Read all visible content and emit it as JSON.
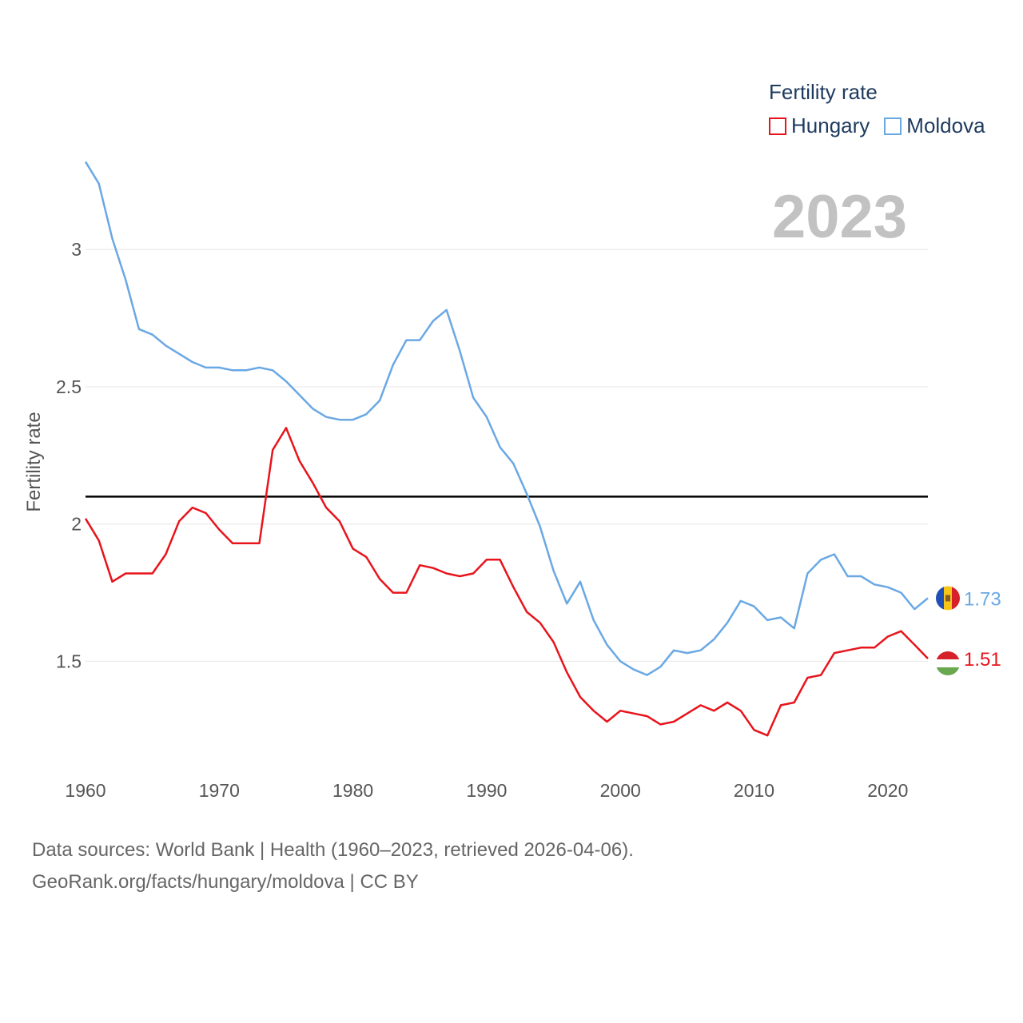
{
  "legend": {
    "title": "Fertility rate",
    "items": [
      {
        "label": "Hungary",
        "color": "#e8141c"
      },
      {
        "label": "Moldova",
        "color": "#6aa8e4"
      }
    ]
  },
  "year_label": "2023",
  "source": {
    "line1": "Data sources: World Bank | Health (1960–2023, retrieved 2026-04-06).",
    "line2": "GeoRank.org/facts/hungary/moldova | CC BY"
  },
  "colors": {
    "hungary": "#e8141c",
    "moldova": "#6aa8e4",
    "reference": "#000000",
    "grid": "#e6e6e6"
  },
  "chart_data": {
    "type": "line",
    "ylabel": "Fertility rate",
    "xlabel": "",
    "xlim": [
      1960,
      2023
    ],
    "ylim": [
      1.05,
      3.35
    ],
    "x_ticks": [
      1960,
      1970,
      1980,
      1990,
      2000,
      2010,
      2020
    ],
    "y_ticks": [
      1.5,
      2,
      2.5,
      3
    ],
    "y_tick_labels": [
      "1.5",
      "2",
      "2.5",
      "3"
    ],
    "reference_line": 2.1,
    "x": [
      1960,
      1961,
      1962,
      1963,
      1964,
      1965,
      1966,
      1967,
      1968,
      1969,
      1970,
      1971,
      1972,
      1973,
      1974,
      1975,
      1976,
      1977,
      1978,
      1979,
      1980,
      1981,
      1982,
      1983,
      1984,
      1985,
      1986,
      1987,
      1988,
      1989,
      1990,
      1991,
      1992,
      1993,
      1994,
      1995,
      1996,
      1997,
      1998,
      1999,
      2000,
      2001,
      2002,
      2003,
      2004,
      2005,
      2006,
      2007,
      2008,
      2009,
      2010,
      2011,
      2012,
      2013,
      2014,
      2015,
      2016,
      2017,
      2018,
      2019,
      2020,
      2021,
      2022,
      2023
    ],
    "series": [
      {
        "name": "Moldova",
        "color": "#6aa8e4",
        "end_label": "1.73",
        "values": [
          3.32,
          3.24,
          3.04,
          2.89,
          2.71,
          2.69,
          2.65,
          2.62,
          2.59,
          2.57,
          2.57,
          2.56,
          2.56,
          2.57,
          2.56,
          2.52,
          2.47,
          2.42,
          2.39,
          2.38,
          2.38,
          2.4,
          2.45,
          2.58,
          2.67,
          2.67,
          2.74,
          2.78,
          2.63,
          2.46,
          2.39,
          2.28,
          2.22,
          2.11,
          1.99,
          1.83,
          1.71,
          1.79,
          1.65,
          1.56,
          1.5,
          1.47,
          1.45,
          1.48,
          1.54,
          1.53,
          1.54,
          1.58,
          1.64,
          1.72,
          1.7,
          1.65,
          1.66,
          1.62,
          1.82,
          1.87,
          1.89,
          1.81,
          1.81,
          1.78,
          1.77,
          1.75,
          1.69,
          1.73
        ]
      },
      {
        "name": "Hungary",
        "color": "#e8141c",
        "end_label": "1.51",
        "values": [
          2.02,
          1.94,
          1.79,
          1.82,
          1.82,
          1.82,
          1.89,
          2.01,
          2.06,
          2.04,
          1.98,
          1.93,
          1.93,
          1.93,
          2.27,
          2.35,
          2.23,
          2.15,
          2.06,
          2.01,
          1.91,
          1.88,
          1.8,
          1.75,
          1.75,
          1.85,
          1.84,
          1.82,
          1.81,
          1.82,
          1.87,
          1.87,
          1.77,
          1.68,
          1.64,
          1.57,
          1.46,
          1.37,
          1.32,
          1.28,
          1.32,
          1.31,
          1.3,
          1.27,
          1.28,
          1.31,
          1.34,
          1.32,
          1.35,
          1.32,
          1.25,
          1.23,
          1.34,
          1.35,
          1.44,
          1.45,
          1.53,
          1.54,
          1.55,
          1.55,
          1.59,
          1.61,
          1.56,
          1.51
        ]
      }
    ]
  }
}
